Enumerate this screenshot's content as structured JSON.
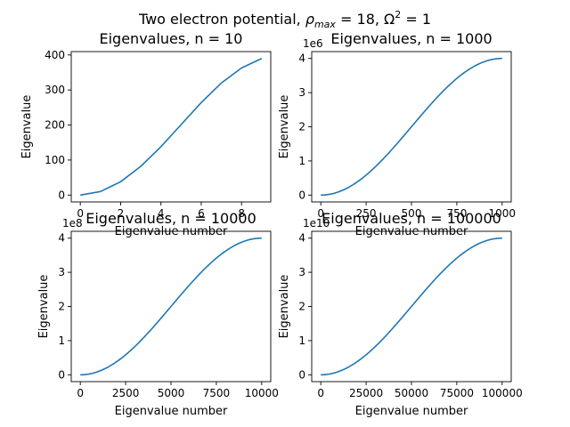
{
  "figure": {
    "suptitle_text": "Two electron potential, ",
    "suptitle_math": "ρ",
    "suptitle_math_sub": "max",
    "suptitle_math_rest": " = 18, Ω",
    "suptitle_math_sup": "2",
    "suptitle_math_end": " = 1"
  },
  "chart_data": [
    {
      "type": "line",
      "title": "Eigenvalues, n = 10",
      "xlabel": "Eigenvalue number",
      "ylabel": "Eigenvalue",
      "n": 10,
      "xlim": [
        -0.45,
        9.45
      ],
      "ylim": [
        -19.6,
        409.6
      ],
      "xticks": [
        0,
        2,
        4,
        6,
        8
      ],
      "xtick_labels": [
        "0",
        "2",
        "4",
        "6",
        "8"
      ],
      "yticks": [
        0,
        100,
        200,
        300,
        400
      ],
      "ytick_labels": [
        "0",
        "100",
        "200",
        "300",
        "400"
      ],
      "y_offset_label": "",
      "color": "#1f77b4",
      "x": [
        0,
        1,
        2,
        3,
        4,
        5,
        6,
        7,
        8,
        9
      ],
      "values": [
        0,
        10,
        38,
        82,
        138,
        201,
        264,
        320,
        363,
        390
      ]
    },
    {
      "type": "line",
      "title": "Eigenvalues, n = 1000",
      "xlabel": "Eigenvalue number",
      "ylabel": "Eigenvalue",
      "n": 1000,
      "xlim": [
        -50,
        1050
      ],
      "ylim": [
        -0.2,
        4.2
      ],
      "xticks": [
        0,
        250,
        500,
        750,
        1000
      ],
      "xtick_labels": [
        "0",
        "250",
        "500",
        "750",
        "1000"
      ],
      "yticks": [
        0,
        1,
        2,
        3,
        4
      ],
      "ytick_labels": [
        "0",
        "1",
        "2",
        "3",
        "4"
      ],
      "y_offset_label": "1e6",
      "color": "#1f77b4",
      "curve": "sin-squared",
      "ymax": 4
    },
    {
      "type": "line",
      "title": "Eigenvalues, n = 10000",
      "xlabel": "Eigenvalue number",
      "ylabel": "Eigenvalue",
      "n": 10000,
      "xlim": [
        -500,
        10500
      ],
      "ylim": [
        -0.2,
        4.2
      ],
      "xticks": [
        0,
        2500,
        5000,
        7500,
        10000
      ],
      "xtick_labels": [
        "0",
        "2500",
        "5000",
        "7500",
        "10000"
      ],
      "yticks": [
        0,
        1,
        2,
        3,
        4
      ],
      "ytick_labels": [
        "0",
        "1",
        "2",
        "3",
        "4"
      ],
      "y_offset_label": "1e8",
      "color": "#1f77b4",
      "curve": "sin-squared",
      "ymax": 4
    },
    {
      "type": "line",
      "title": "Eigenvalues, n = 100000",
      "xlabel": "Eigenvalue number",
      "ylabel": "Eigenvalue",
      "n": 100000,
      "xlim": [
        -5000,
        105000
      ],
      "ylim": [
        -0.2,
        4.2
      ],
      "xticks": [
        0,
        25000,
        50000,
        75000,
        100000
      ],
      "xtick_labels": [
        "0",
        "25000",
        "50000",
        "75000",
        "100000"
      ],
      "yticks": [
        0,
        1,
        2,
        3,
        4
      ],
      "ytick_labels": [
        "0",
        "1",
        "2",
        "3",
        "4"
      ],
      "y_offset_label": "1e10",
      "color": "#1f77b4",
      "curve": "sin-squared",
      "ymax": 4
    }
  ]
}
